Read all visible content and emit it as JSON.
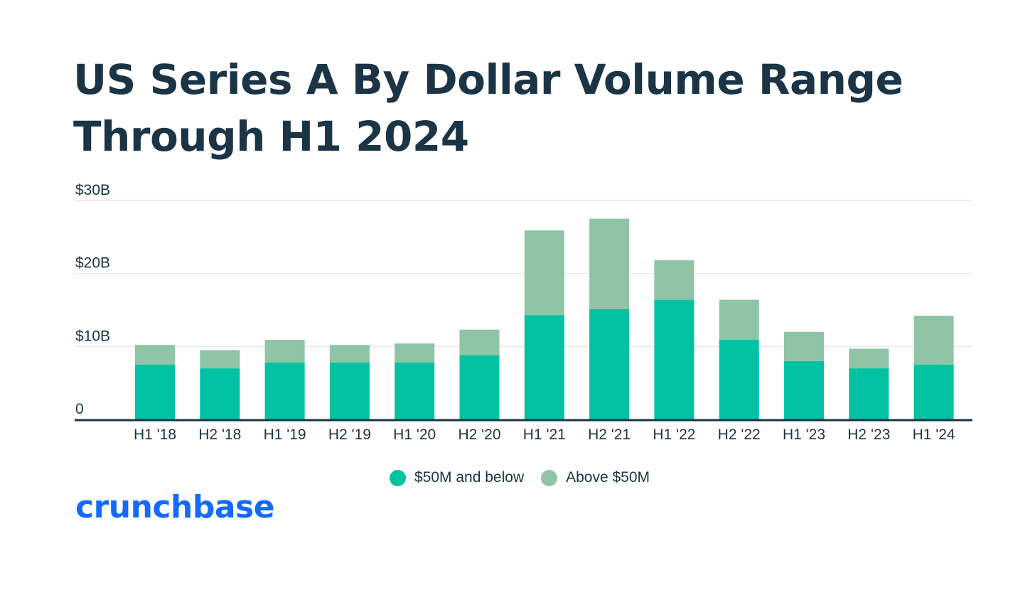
{
  "title_lines": [
    "US Series A By Dollar Volume Range",
    "Through H1 2024"
  ],
  "brand": "crunchbase",
  "colors": {
    "below": "#00c2a2",
    "above": "#8fc4a6",
    "text": "#1b3446",
    "grid": "#e4e8ea",
    "axis": "#1b3446",
    "brand": "#146aff"
  },
  "chart_data": {
    "type": "bar",
    "stacked": true,
    "title": "US Series A By Dollar Volume Range Through H1 2024",
    "xlabel": "",
    "ylabel": "",
    "ylim": [
      0,
      30
    ],
    "y_ticks": [
      {
        "value": 0,
        "label": "0"
      },
      {
        "value": 10,
        "label": "$10B"
      },
      {
        "value": 20,
        "label": "$20B"
      },
      {
        "value": 30,
        "label": "$30B"
      }
    ],
    "categories": [
      "H1 '18",
      "H2 '18",
      "H1 '19",
      "H2 '19",
      "H1 '20",
      "H2 '20",
      "H1 '21",
      "H2 '21",
      "H1 '22",
      "H2 '22",
      "H1 '23",
      "H2 '23",
      "H1 '24"
    ],
    "series": [
      {
        "name": "$50M and below",
        "values": [
          7.5,
          7.0,
          7.8,
          7.8,
          7.8,
          8.8,
          14.3,
          15.1,
          16.4,
          10.9,
          8.0,
          7.0,
          7.5
        ]
      },
      {
        "name": "Above $50M",
        "values": [
          2.7,
          2.5,
          3.1,
          2.4,
          2.6,
          3.5,
          11.6,
          12.4,
          5.4,
          5.5,
          4.0,
          2.7,
          6.7
        ]
      }
    ],
    "legend_position": "bottom-center",
    "grid": true
  }
}
